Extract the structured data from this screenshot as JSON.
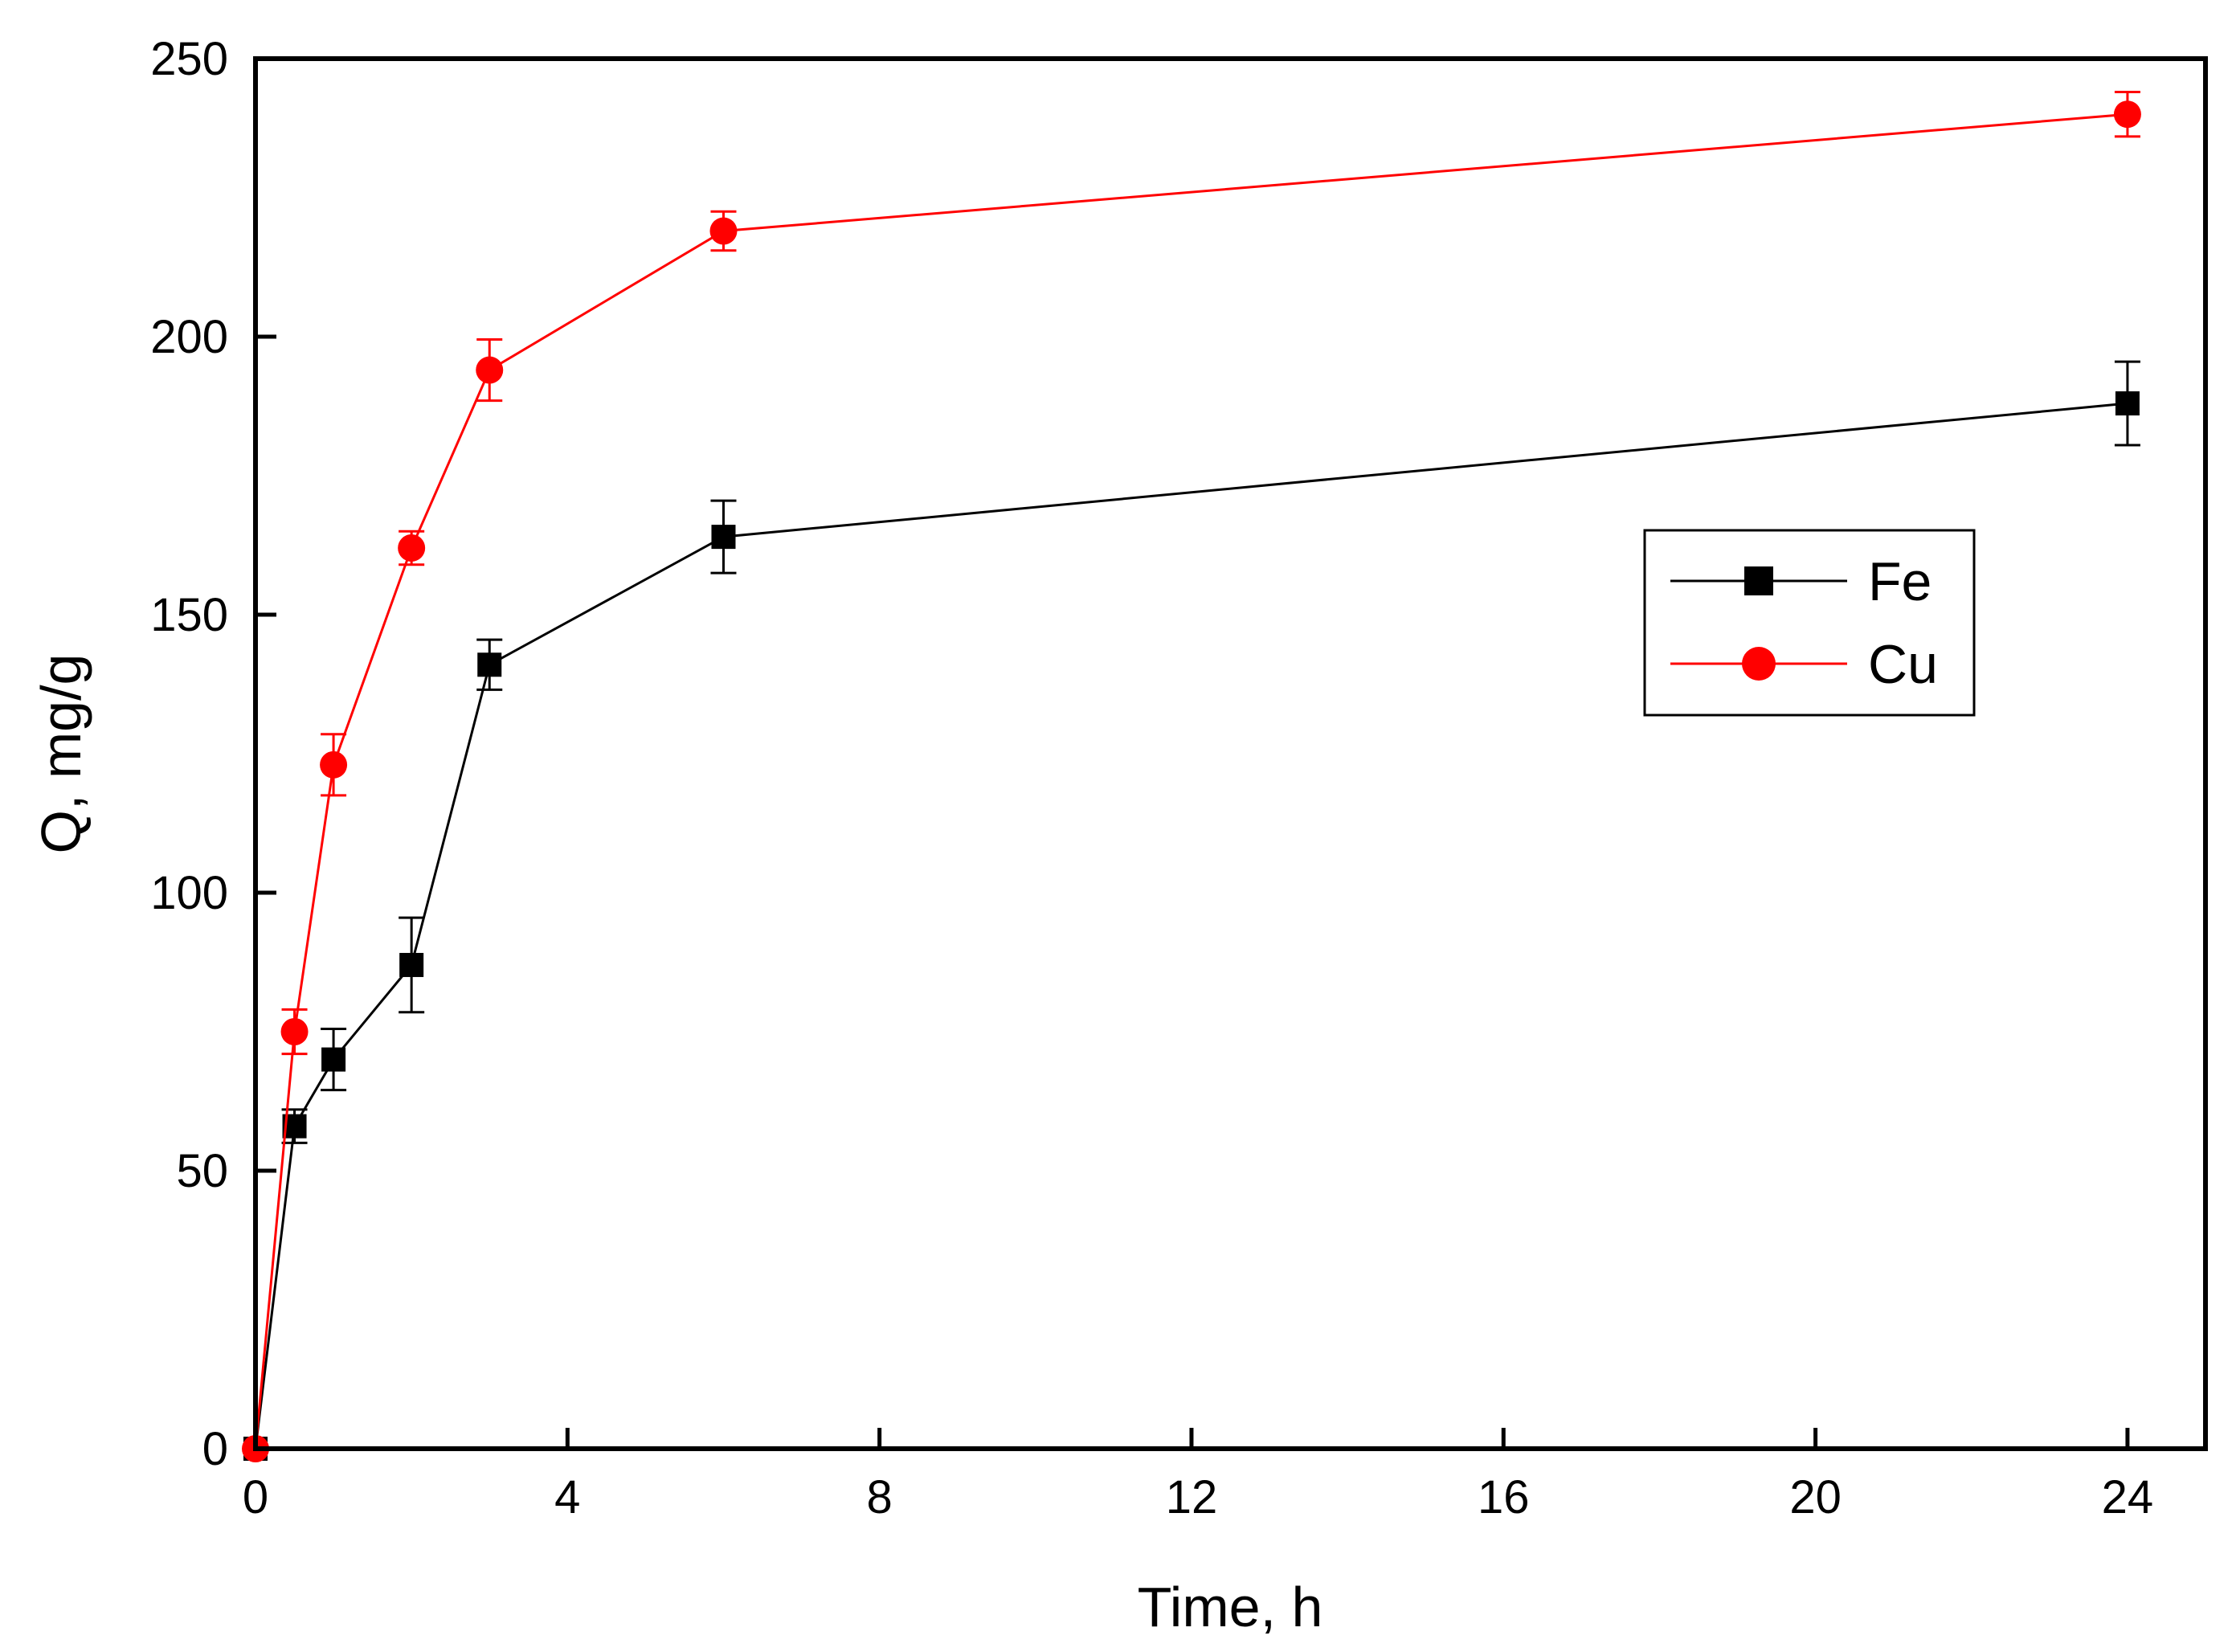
{
  "chart_data": {
    "type": "line",
    "title": "",
    "xlabel": "Time, h",
    "ylabel": "Q, mg/g",
    "xlim": [
      0,
      25
    ],
    "ylim": [
      0,
      250
    ],
    "x_ticks": [
      0,
      4,
      8,
      12,
      16,
      20,
      24
    ],
    "y_ticks": [
      0,
      50,
      100,
      150,
      200,
      250
    ],
    "grid": false,
    "legend_position": "right",
    "series": [
      {
        "name": "Fe",
        "color": "#000000",
        "marker": "square",
        "x": [
          0,
          0.5,
          1,
          2,
          3,
          6,
          24
        ],
        "y": [
          0,
          58,
          70,
          87,
          141,
          164,
          188
        ],
        "error": [
          0,
          3,
          5.5,
          8.5,
          4.5,
          6.5,
          7.5
        ]
      },
      {
        "name": "Cu",
        "color": "#ff0000",
        "marker": "circle",
        "x": [
          0,
          0.5,
          1,
          2,
          3,
          6,
          24
        ],
        "y": [
          0,
          75,
          123,
          162,
          194,
          219,
          240
        ],
        "error": [
          0,
          4,
          5.5,
          3,
          5.5,
          3.5,
          4
        ]
      }
    ]
  }
}
